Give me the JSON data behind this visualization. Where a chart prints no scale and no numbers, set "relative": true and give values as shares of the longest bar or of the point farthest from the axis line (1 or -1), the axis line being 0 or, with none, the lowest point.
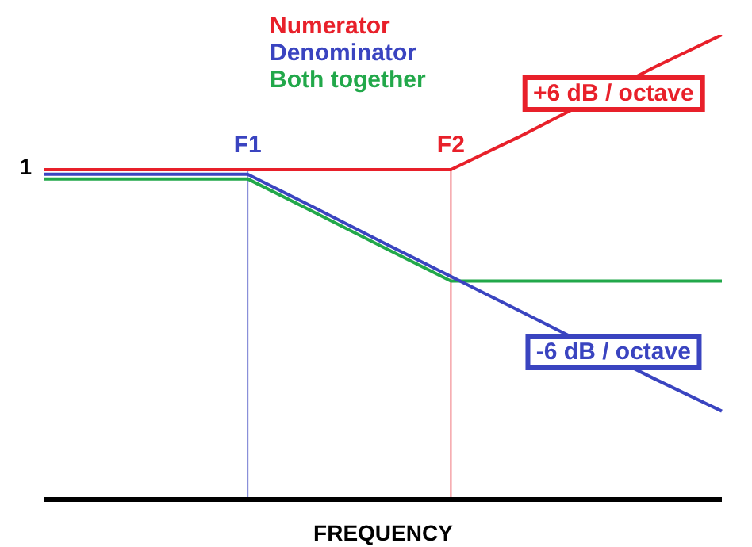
{
  "chart_data": {
    "type": "line",
    "relative": true,
    "xlabel": "FREQUENCY",
    "categories": [
      null,
      null,
      null,
      null,
      null,
      null,
      null,
      null,
      null,
      null,
      null
    ],
    "marker": "none",
    "line_style": "solid",
    "series": [
      {
        "name": "Numerator",
        "color": "#e8202a",
        "values": [
          0.71,
          0.71,
          0.71,
          0.71,
          0.71,
          0.71,
          0.71,
          0.78,
          null,
          0.93,
          1
        ]
      },
      {
        "name": "Denominator",
        "color": "#3a44c0",
        "values": [
          0.7,
          0.7,
          0.7,
          0.7,
          0.627,
          0.553,
          0.48,
          0.407,
          null,
          0.26,
          0.19
        ]
      },
      {
        "name": "Both together",
        "color": "#22a84a",
        "values": [
          0.69,
          0.69,
          0.69,
          0.69,
          0.617,
          0.543,
          0.47,
          0.47,
          0.47,
          0.47,
          0.47
        ]
      }
    ],
    "annotations": [
      "F1",
      "F2",
      "1",
      "+6 dB / octave",
      "-6 dB / octave"
    ]
  }
}
